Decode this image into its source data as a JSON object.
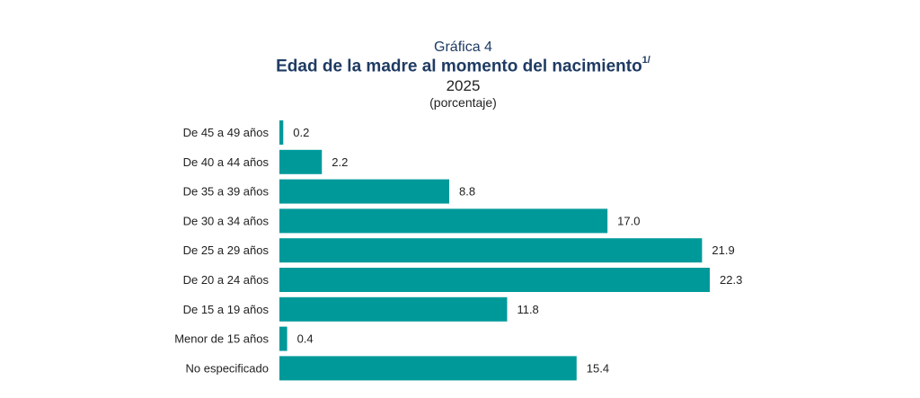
{
  "header": {
    "caption": "Gráfica 4",
    "title": "Edad de la madre al momento del nacimiento",
    "title_note": "1/",
    "year": "2025",
    "unit": "(porcentaje)"
  },
  "colors": {
    "bar": "#00999a"
  },
  "chart_data": {
    "type": "bar",
    "orientation": "horizontal",
    "title": "Edad de la madre al momento del nacimiento",
    "subtitle": "2025",
    "unit": "(porcentaje)",
    "categories": [
      "De 45 a 49 años",
      "De 40 a 44 años",
      "De 35 a 39 años",
      "De 30 a 34 años",
      "De 25 a 29 años",
      "De 20 a 24 años",
      "De 15 a 19 años",
      "Menor de 15 años",
      "No especificado"
    ],
    "values": [
      0.2,
      2.2,
      8.8,
      17.0,
      21.9,
      22.3,
      11.8,
      0.4,
      15.4
    ],
    "value_labels": [
      "0.2",
      "2.2",
      "8.8",
      "17.0",
      "21.9",
      "22.3",
      "11.8",
      "0.4",
      "15.4"
    ],
    "xlim": [
      0,
      22.3
    ],
    "grid": false,
    "legend": "none"
  }
}
